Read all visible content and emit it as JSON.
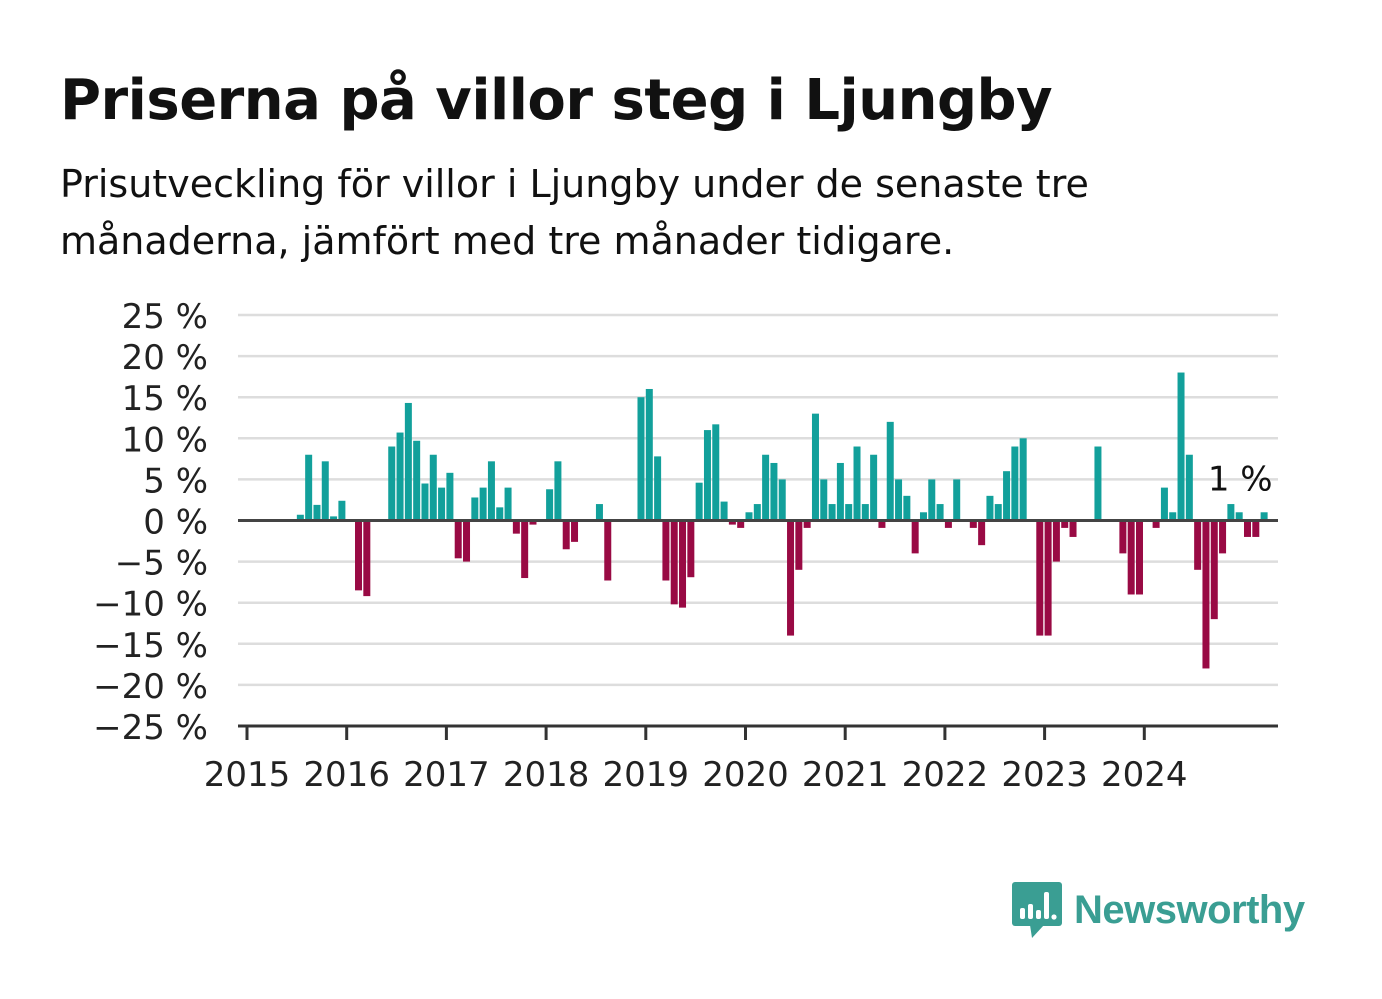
{
  "title": "Priserna på villor steg i Ljungby",
  "subtitle": "Prisutveckling för villor i Ljungby under de senaste tre månaderna, jämfört med tre månader tidigare.",
  "brand": {
    "name": "Newsworthy",
    "color": "#3a9e93"
  },
  "colors": {
    "positive": "#12a09b",
    "negative": "#990a44",
    "grid": "#dddddd",
    "axis": "#333333"
  },
  "chart_data": {
    "type": "bar",
    "ylim": [
      -25,
      25
    ],
    "yticks": [
      25,
      20,
      15,
      10,
      5,
      0,
      -5,
      -10,
      -15,
      -20,
      -25
    ],
    "ytick_labels": [
      "25 %",
      "20 %",
      "15 %",
      "10 %",
      "5 %",
      "0 %",
      "−5 %",
      "−10 %",
      "−15 %",
      "−20 %",
      "−25 %"
    ],
    "xticks": [
      "2015",
      "2016",
      "2017",
      "2018",
      "2019",
      "2020",
      "2021",
      "2022",
      "2023",
      "2024"
    ],
    "start": "2015-01",
    "grid": true,
    "annotation": {
      "label": "1 %",
      "month": "2024-12",
      "value": 1
    },
    "values": [
      0,
      0,
      0,
      0,
      0,
      0,
      0.7,
      8,
      1.9,
      7.2,
      0.5,
      2.4,
      0,
      -8.5,
      -9.2,
      0,
      0,
      9,
      10.7,
      14.3,
      9.7,
      4.5,
      8,
      4,
      5.8,
      -4.6,
      -5,
      2.8,
      4,
      7.2,
      1.6,
      4,
      -1.6,
      -7,
      -0.5,
      0,
      3.8,
      7.2,
      -3.5,
      -2.6,
      0,
      0,
      2,
      -7.3,
      0,
      0,
      0,
      15,
      16,
      7.8,
      -7.3,
      -10.2,
      -10.6,
      -6.9,
      4.6,
      11,
      11.7,
      2.3,
      -0.5,
      -0.9,
      1,
      2,
      8,
      7,
      5,
      -14,
      -6,
      -0.9,
      13,
      5,
      2,
      7,
      2,
      9,
      2,
      8,
      -0.9,
      12,
      5,
      3,
      -4,
      1,
      5,
      2,
      -0.9,
      5,
      0,
      -0.9,
      -3,
      3,
      2,
      6,
      9,
      10,
      0,
      -14,
      -14,
      -5,
      -0.9,
      -2,
      0,
      0,
      9,
      0,
      0,
      -4,
      -9,
      -9,
      0,
      -0.9,
      4,
      1,
      18,
      8,
      -6,
      -18,
      -12,
      -4,
      2,
      1,
      -2,
      -2,
      1
    ]
  }
}
